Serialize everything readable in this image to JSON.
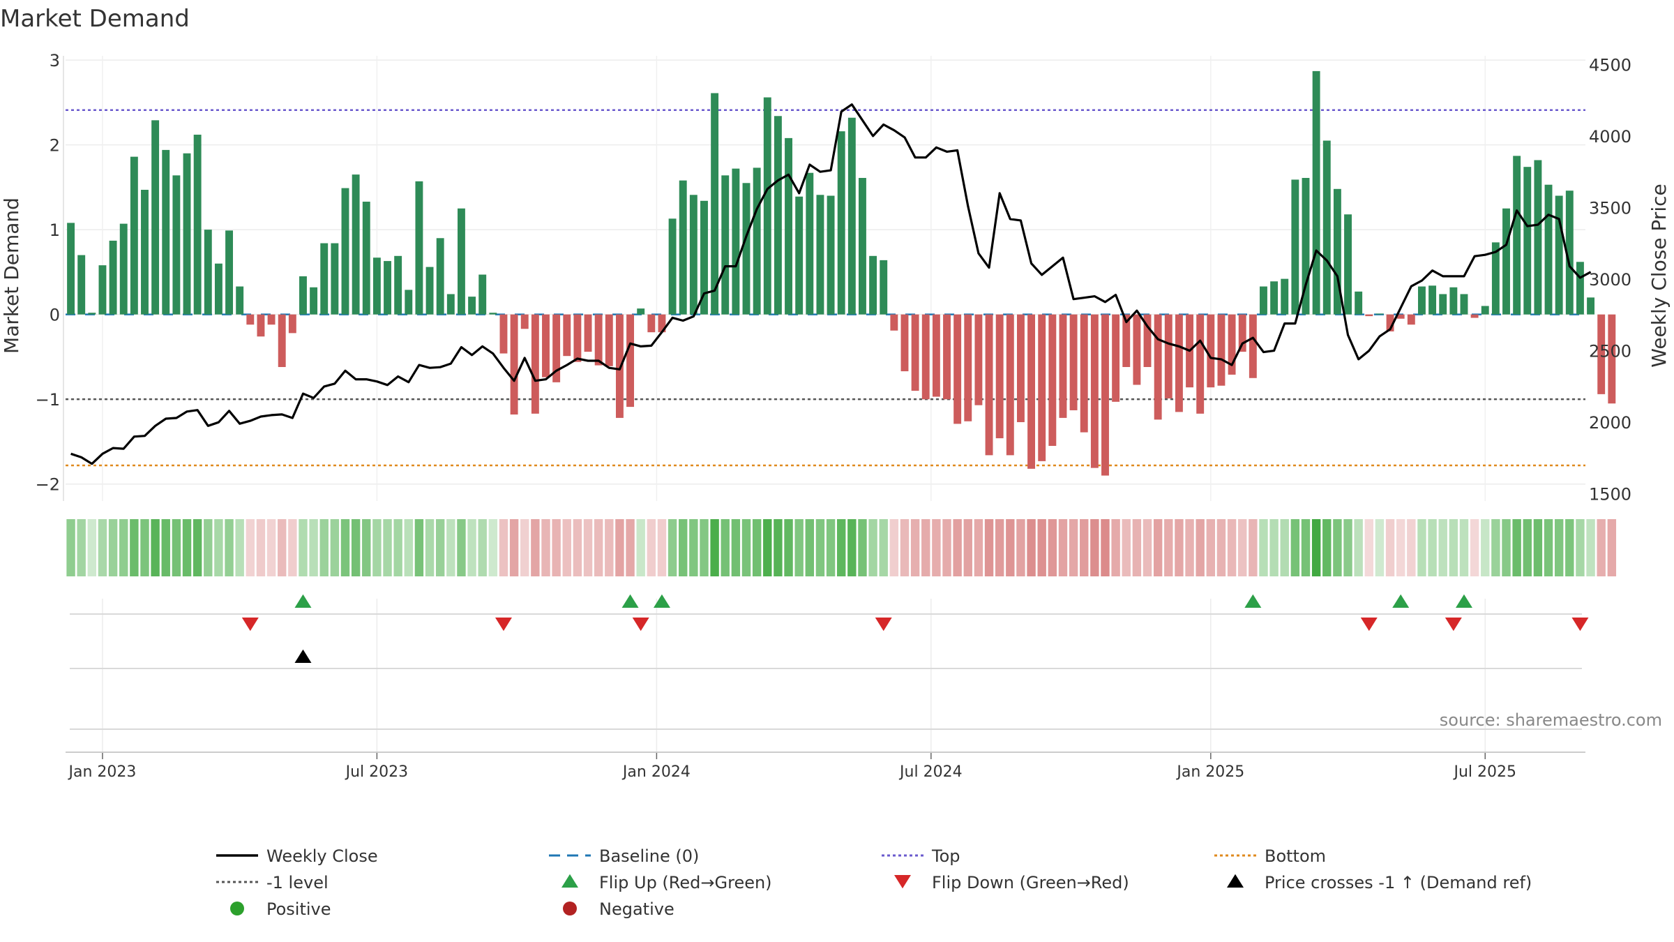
{
  "chart_data": {
    "type": "bar",
    "title": "Market Demand",
    "ylabel_left": "Market Demand",
    "ylabel_right": "Weekly Close Price",
    "ylim_left": [
      -2.2,
      3.05
    ],
    "ylim_right": [
      1450,
      4560
    ],
    "yticks_left": [
      {
        "value": 3,
        "label": "3"
      },
      {
        "value": 2,
        "label": "2"
      },
      {
        "value": 1,
        "label": "1"
      },
      {
        "value": 0,
        "label": "0"
      },
      {
        "value": -1,
        "label": "−1"
      },
      {
        "value": -2,
        "label": "−2"
      }
    ],
    "yticks_right": [
      {
        "value": 4500,
        "label": "4500"
      },
      {
        "value": 4000,
        "label": "4000"
      },
      {
        "value": 3500,
        "label": "3500"
      },
      {
        "value": 3000,
        "label": "3000"
      },
      {
        "value": 2500,
        "label": "2500"
      },
      {
        "value": 2000,
        "label": "2000"
      },
      {
        "value": 1500,
        "label": "1500"
      }
    ],
    "x_ticks": [
      {
        "week": 3,
        "label": "Jan 2023"
      },
      {
        "week": 29,
        "label": "Jul 2023"
      },
      {
        "week": 55.5,
        "label": "Jan 2024"
      },
      {
        "week": 81.5,
        "label": "Jul 2024"
      },
      {
        "week": 108,
        "label": "Jan 2025"
      },
      {
        "week": 134,
        "label": "Jul 2025"
      }
    ],
    "week_range": [
      -0.5,
      143.5
    ],
    "demand": [
      1.08,
      0.7,
      0.02,
      0.58,
      0.87,
      1.07,
      1.86,
      1.47,
      2.29,
      1.94,
      1.64,
      1.9,
      2.12,
      1.0,
      0.6,
      0.99,
      0.33,
      -0.12,
      -0.26,
      -0.12,
      -0.62,
      -0.22,
      0.45,
      0.32,
      0.84,
      0.84,
      1.49,
      1.65,
      1.33,
      0.67,
      0.63,
      0.69,
      0.29,
      1.57,
      0.56,
      0.9,
      0.24,
      1.25,
      0.21,
      0.47,
      0.02,
      -0.46,
      -1.18,
      -0.17,
      -1.17,
      -0.74,
      -0.8,
      -0.49,
      -0.56,
      -0.44,
      -0.6,
      -0.61,
      -1.22,
      -1.09,
      0.07,
      -0.21,
      -0.21,
      1.13,
      1.58,
      1.41,
      1.34,
      2.61,
      1.64,
      1.72,
      1.55,
      1.73,
      2.56,
      2.34,
      2.08,
      1.39,
      1.67,
      1.41,
      1.4,
      2.16,
      2.32,
      1.61,
      0.69,
      0.64,
      -0.19,
      -0.67,
      -0.9,
      -1.0,
      -0.97,
      -1.0,
      -1.29,
      -1.26,
      -1.07,
      -1.66,
      -1.46,
      -1.66,
      -1.27,
      -1.82,
      -1.73,
      -1.55,
      -1.22,
      -1.13,
      -1.39,
      -1.81,
      -1.9,
      -1.03,
      -0.62,
      -0.83,
      -0.62,
      -1.24,
      -0.99,
      -1.15,
      -0.86,
      -1.17,
      -0.86,
      -0.84,
      -0.71,
      -0.44,
      -0.75,
      0.33,
      0.39,
      0.42,
      1.59,
      1.61,
      2.87,
      2.05,
      1.48,
      1.18,
      0.27,
      -0.02,
      0.01,
      -0.2,
      -0.05,
      -0.12,
      0.33,
      0.34,
      0.24,
      0.32,
      0.24,
      -0.04,
      0.1,
      0.85,
      1.25,
      1.87,
      1.74,
      1.82,
      1.53,
      1.4,
      1.46,
      0.62,
      0.2,
      -0.94,
      -1.05
    ],
    "price": [
      1780,
      1755,
      1710,
      1780,
      1820,
      1815,
      1900,
      1905,
      1975,
      2025,
      2030,
      2075,
      2085,
      1975,
      2000,
      2080,
      1990,
      2010,
      2040,
      2050,
      2055,
      2030,
      2200,
      2170,
      2250,
      2270,
      2360,
      2300,
      2300,
      2285,
      2260,
      2320,
      2280,
      2400,
      2380,
      2385,
      2410,
      2525,
      2470,
      2530,
      2480,
      2380,
      2290,
      2450,
      2290,
      2300,
      2360,
      2400,
      2445,
      2430,
      2430,
      2380,
      2370,
      2550,
      2530,
      2535,
      2630,
      2730,
      2710,
      2740,
      2900,
      2920,
      3090,
      3090,
      3300,
      3490,
      3630,
      3690,
      3730,
      3600,
      3800,
      3750,
      3760,
      4170,
      4220,
      4110,
      4000,
      4080,
      4040,
      3990,
      3850,
      3850,
      3920,
      3890,
      3900,
      3510,
      3180,
      3080,
      3600,
      3420,
      3410,
      3110,
      3030,
      3090,
      3150,
      2860,
      2870,
      2880,
      2840,
      2890,
      2700,
      2780,
      2670,
      2580,
      2550,
      2530,
      2500,
      2570,
      2450,
      2440,
      2400,
      2550,
      2590,
      2490,
      2500,
      2690,
      2690,
      2960,
      3200,
      3130,
      3020,
      2610,
      2440,
      2500,
      2600,
      2650,
      2800,
      2950,
      2990,
      3060,
      3020,
      3020,
      3020,
      3160,
      3170,
      3190,
      3240,
      3480,
      3370,
      3380,
      3450,
      3420,
      3090,
      3010,
      3050
    ],
    "reference_lines": {
      "top": 2.41,
      "minus_one": -1.0,
      "bottom": -1.78,
      "baseline": 0
    },
    "flip_up_weeks": [
      22,
      53,
      56,
      112,
      126,
      132
    ],
    "flip_down_weeks": [
      17,
      41,
      54,
      77,
      123,
      131,
      143
    ],
    "price_cross_weeks": [
      22
    ],
    "source": "source: sharemaestro.com",
    "colors": {
      "positive_bar": "#2e8b57",
      "negative_bar": "#cd5c5c",
      "price_line": "#000000",
      "baseline": "#1f77b4",
      "top": "#6a5acd",
      "minus_one": "#555555",
      "bottom": "#e08a1e",
      "flip_up": "#2ca048",
      "flip_down": "#d62728",
      "cross": "#000000",
      "positive_marker": "#2ca02c",
      "negative_marker": "#b22222"
    },
    "legend": [
      {
        "label": "Weekly Close",
        "kind": "line",
        "color": "#000000"
      },
      {
        "label": "Baseline (0)",
        "kind": "dashed",
        "color": "#1f77b4"
      },
      {
        "label": "Top",
        "kind": "dotted",
        "color": "#6a5acd"
      },
      {
        "label": "Bottom",
        "kind": "dotted",
        "color": "#e08a1e"
      },
      {
        "label": "-1 level",
        "kind": "dotted",
        "color": "#555555"
      },
      {
        "label": "Flip Up (Red→Green)",
        "kind": "tri-up",
        "color": "#2ca048"
      },
      {
        "label": "Flip Down (Green→Red)",
        "kind": "tri-down",
        "color": "#d62728"
      },
      {
        "label": "Price crosses -1 ↑ (Demand ref)",
        "kind": "tri-up",
        "color": "#000000"
      },
      {
        "label": "Positive",
        "kind": "circle",
        "color": "#2ca02c"
      },
      {
        "label": "Negative",
        "kind": "circle",
        "color": "#b22222"
      }
    ]
  }
}
